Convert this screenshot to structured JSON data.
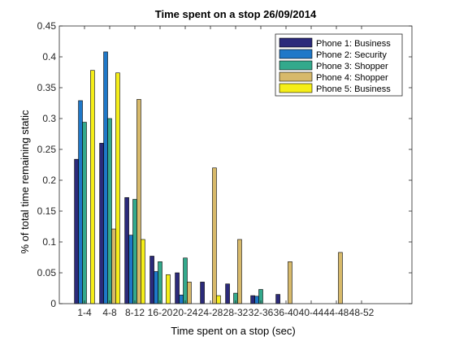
{
  "chart_data": {
    "type": "bar",
    "title": "Time spent on a stop 26/09/2014",
    "xlabel": "Time spent on a stop (sec)",
    "ylabel": "% of total time remaining static",
    "ylim": [
      0,
      0.45
    ],
    "yticks": [
      "0",
      "0.05",
      "0.1",
      "0.15",
      "0.2",
      "0.25",
      "0.3",
      "0.35",
      "0.4",
      "0.45"
    ],
    "categories": [
      "1-4",
      "4-8",
      "8-12",
      "16-20",
      "20-24",
      "24-28",
      "28-32",
      "32-36",
      "36-40",
      "40-44",
      "44-48",
      "48-52"
    ],
    "grid": false,
    "legend_position": "top-right",
    "series": [
      {
        "name": "Phone 1: Business",
        "color": "#2b2a7a",
        "values": [
          0.234,
          0.26,
          0.172,
          0.077,
          0.05,
          0.035,
          0.032,
          0.013,
          0.015,
          0,
          0,
          0
        ]
      },
      {
        "name": "Phone 2: Security",
        "color": "#1f78c8",
        "values": [
          0.329,
          0.408,
          0.111,
          0.052,
          0.014,
          0,
          0,
          0.012,
          0,
          0,
          0,
          0
        ]
      },
      {
        "name": "Phone 3: Shopper",
        "color": "#33a98c",
        "values": [
          0.294,
          0.3,
          0.169,
          0.068,
          0.074,
          0,
          0.017,
          0.023,
          0,
          0,
          0,
          0
        ]
      },
      {
        "name": "Phone 4: Shopper",
        "color": "#d7b96a",
        "values": [
          0,
          0.121,
          0.331,
          0,
          0.035,
          0.22,
          0.104,
          0,
          0.068,
          0,
          0.083,
          0
        ]
      },
      {
        "name": "Phone 5: Business",
        "color": "#f5ee18",
        "values": [
          0.378,
          0.374,
          0.104,
          0.047,
          0,
          0.013,
          0,
          0,
          0,
          0,
          0,
          0
        ]
      }
    ]
  }
}
